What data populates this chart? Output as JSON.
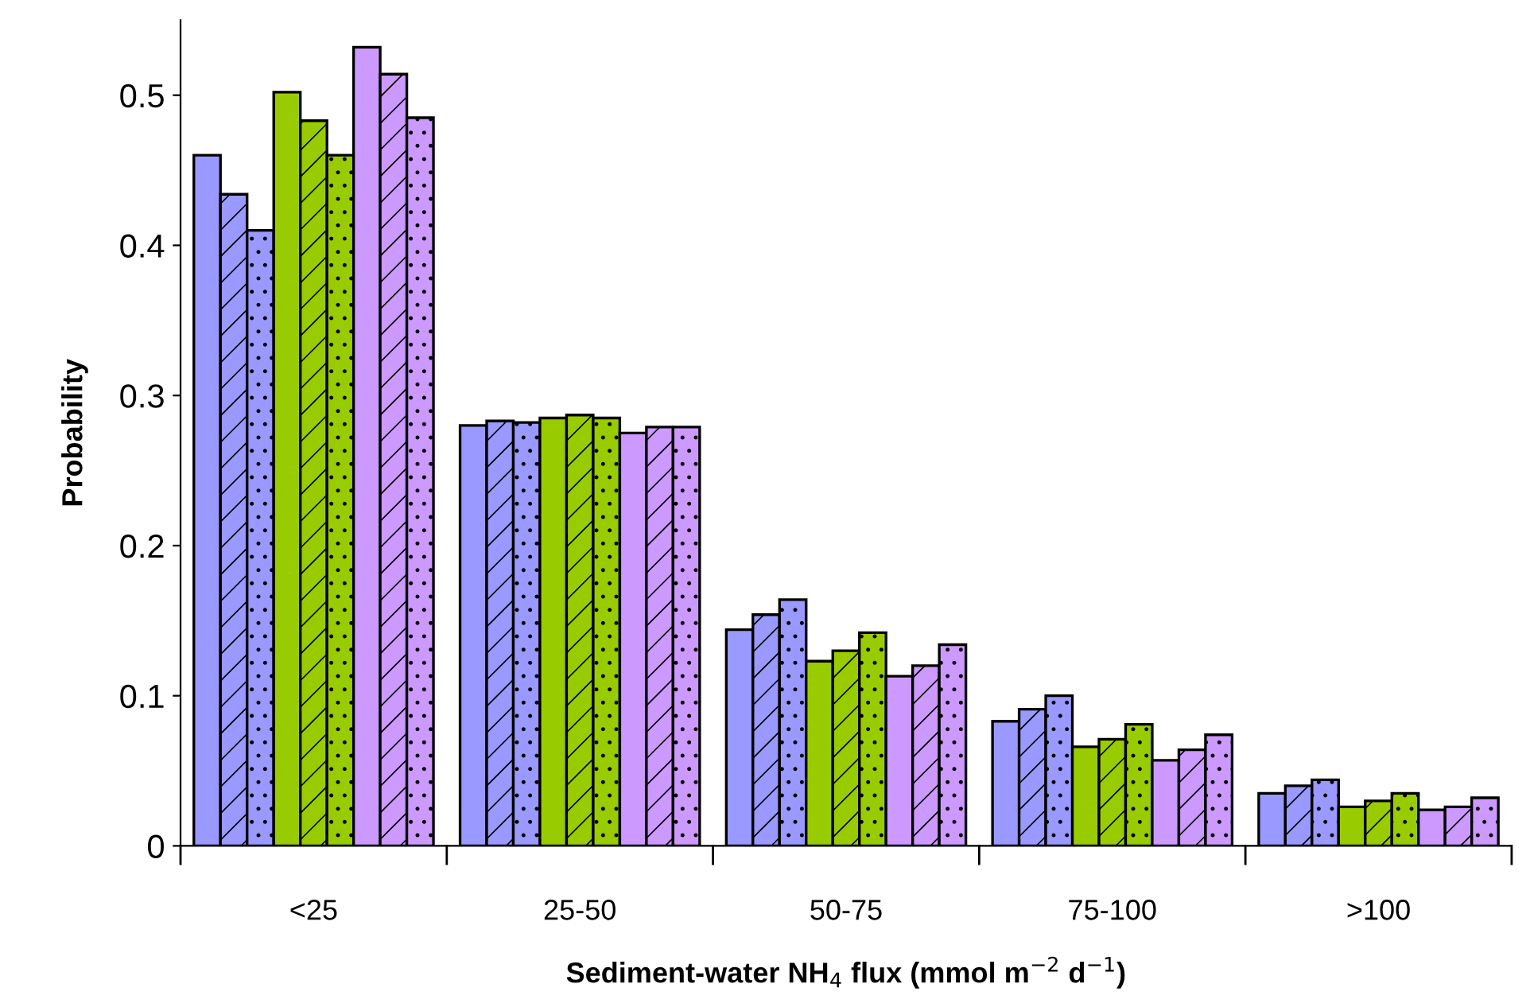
{
  "chart_data": {
    "type": "bar",
    "xlabel": "Sediment-water NH$_{4}$ flux (mmol m$^{−2}$ d$^{−1}$)",
    "ylabel": "Probability",
    "categories": [
      "<25",
      "25-50",
      "50-75",
      "75-100",
      ">100"
    ],
    "series": [
      {
        "color": "#9999ff",
        "values": [
          0.46,
          0.28,
          0.144,
          0.083,
          0.035
        ]
      },
      {
        "color": "#9999ff",
        "values": [
          0.434,
          0.283,
          0.154,
          0.091,
          0.04
        ]
      },
      {
        "color": "#9999ff",
        "values": [
          0.41,
          0.282,
          0.164,
          0.1,
          0.044
        ]
      },
      {
        "color": "#99cc00",
        "values": [
          0.502,
          0.285,
          0.123,
          0.066,
          0.026
        ]
      },
      {
        "color": "#99cc00",
        "values": [
          0.483,
          0.287,
          0.13,
          0.071,
          0.03
        ]
      },
      {
        "color": "#99cc00",
        "values": [
          0.46,
          0.285,
          0.142,
          0.081,
          0.035
        ]
      },
      {
        "color": "#cc99ff",
        "values": [
          0.532,
          0.275,
          0.113,
          0.057,
          0.024
        ]
      },
      {
        "color": "#cc99ff",
        "values": [
          0.514,
          0.279,
          0.12,
          0.064,
          0.026
        ]
      },
      {
        "color": "#cc99ff",
        "values": [
          0.485,
          0.279,
          0.134,
          0.074,
          0.032
        ]
      }
    ],
    "ylim": [
      0,
      0.55
    ],
    "yticks": [
      0,
      0.1,
      0.2,
      0.3,
      0.4,
      0.5
    ],
    "grid": false,
    "legend": false
  }
}
